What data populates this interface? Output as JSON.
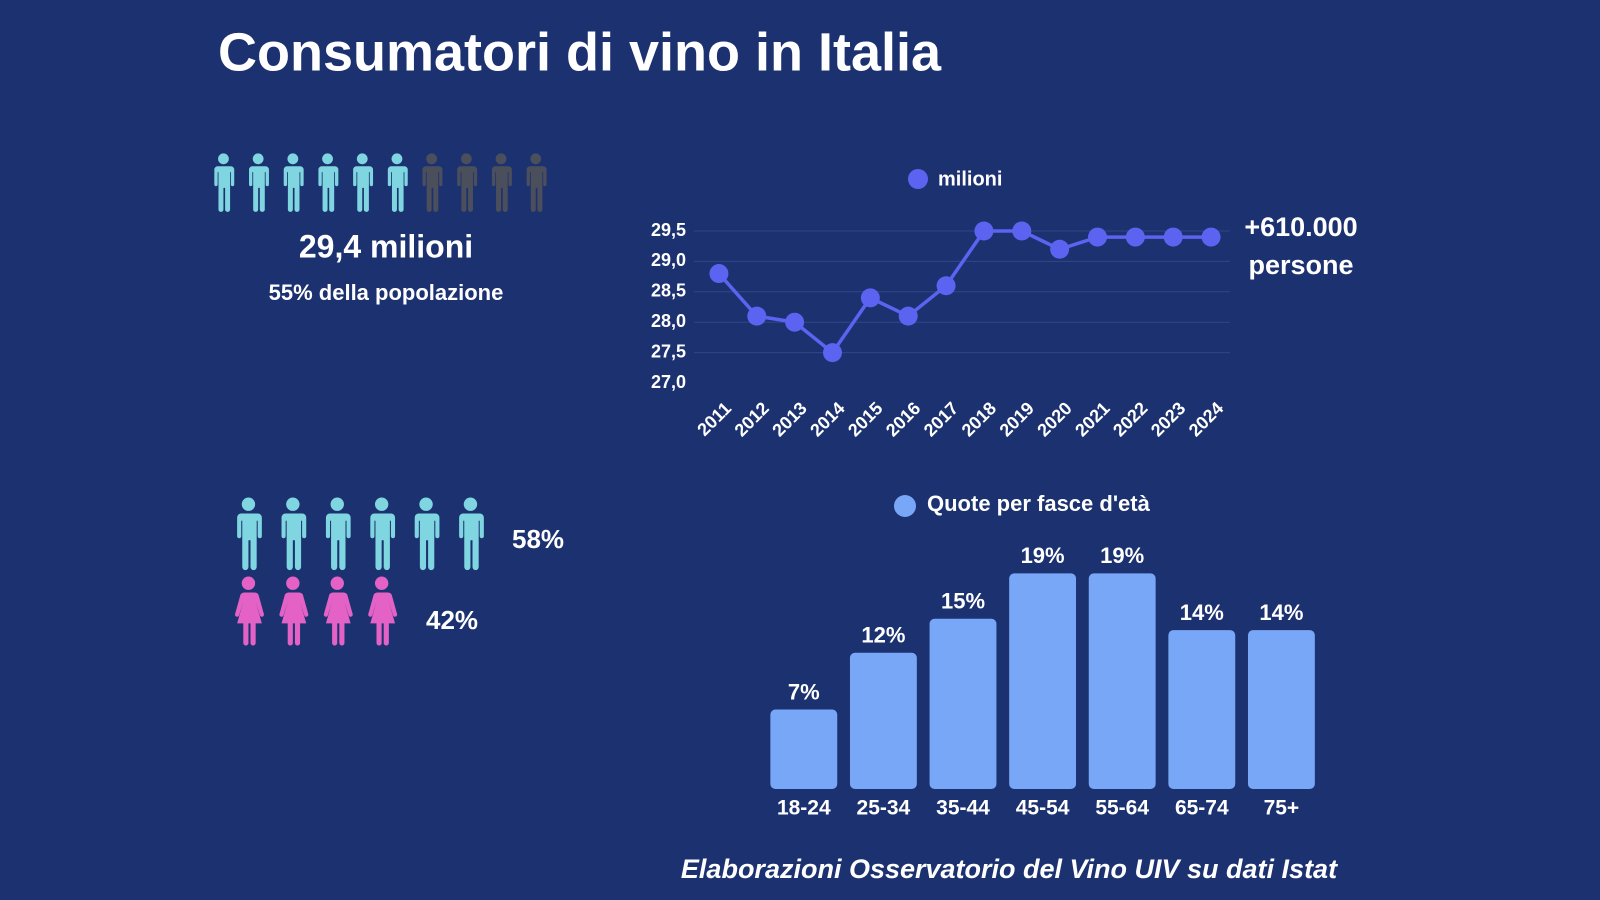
{
  "title": "Consumatori di vino in Italia",
  "population": {
    "total": "29,4 milioni",
    "share": "55% della popolazione"
  },
  "gender": {
    "male": "58%",
    "female": "42%"
  },
  "chart_data": [
    {
      "type": "line",
      "categories": [
        "2011",
        "2012",
        "2013",
        "2014",
        "2015",
        "2016",
        "2017",
        "2018",
        "2019",
        "2020",
        "2021",
        "2022",
        "2023",
        "2024"
      ],
      "series": [
        {
          "name": "milioni",
          "color": "#5b63f0",
          "values": [
            28.8,
            28.1,
            28.0,
            27.5,
            28.4,
            28.1,
            28.6,
            29.5,
            29.5,
            29.2,
            29.4,
            29.4,
            29.4,
            29.4
          ]
        }
      ],
      "ylim": [
        27.0,
        29.5
      ],
      "yticks": [
        {
          "value": 27.0,
          "label": "27,0"
        },
        {
          "value": 27.5,
          "label": "27,5"
        },
        {
          "value": 28.0,
          "label": "28,0"
        },
        {
          "value": 28.5,
          "label": "28,5"
        },
        {
          "value": 29.0,
          "label": "29,0"
        },
        {
          "value": 29.5,
          "label": "29,5"
        }
      ],
      "grid": true,
      "annotation": [
        "+610.000",
        "persone"
      ]
    },
    {
      "type": "bar",
      "categories": [
        "18-24",
        "25-34",
        "35-44",
        "45-54",
        "55-64",
        "65-74",
        "75+"
      ],
      "series": [
        {
          "name": "Quote per fasce d'età",
          "color": "#79a7f7",
          "values": [
            7,
            12,
            15,
            19,
            19,
            14,
            14
          ],
          "value_labels": [
            "7%",
            "12%",
            "15%",
            "19%",
            "19%",
            "14%",
            "14%"
          ]
        }
      ],
      "ylim": [
        0,
        20
      ],
      "grid": false
    }
  ],
  "source": "Elaborazioni Osservatorio del Vino UIV su dati Istat"
}
